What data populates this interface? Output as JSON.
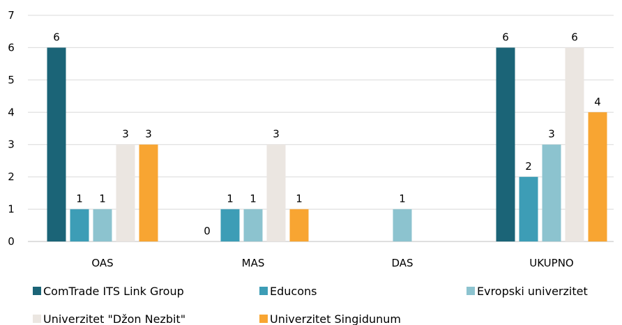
{
  "chart_data": {
    "type": "bar",
    "title": "",
    "xlabel": "",
    "ylabel": "",
    "ylim": [
      0,
      7
    ],
    "yticks": [
      0,
      1,
      2,
      3,
      4,
      5,
      6,
      7
    ],
    "grid": true,
    "legend_position": "bottom",
    "categories": [
      "OAS",
      "MAS",
      "DAS",
      "UKUPNO"
    ],
    "series": [
      {
        "name": "ComTrade ITS Link Group",
        "color": "#1b6477",
        "values": [
          6,
          0,
          null,
          6
        ]
      },
      {
        "name": "Educons",
        "color": "#3d9db6",
        "values": [
          1,
          1,
          null,
          2
        ]
      },
      {
        "name": "Evropski univerzitet",
        "color": "#8cc3cf",
        "values": [
          1,
          1,
          1,
          3
        ]
      },
      {
        "name": "Univerzitet \"Džon Nezbit\"",
        "color": "#ebe6e1",
        "values": [
          3,
          3,
          null,
          6
        ]
      },
      {
        "name": "Univerzitet Singidunum",
        "color": "#f8a532",
        "values": [
          3,
          1,
          null,
          4
        ]
      }
    ]
  }
}
